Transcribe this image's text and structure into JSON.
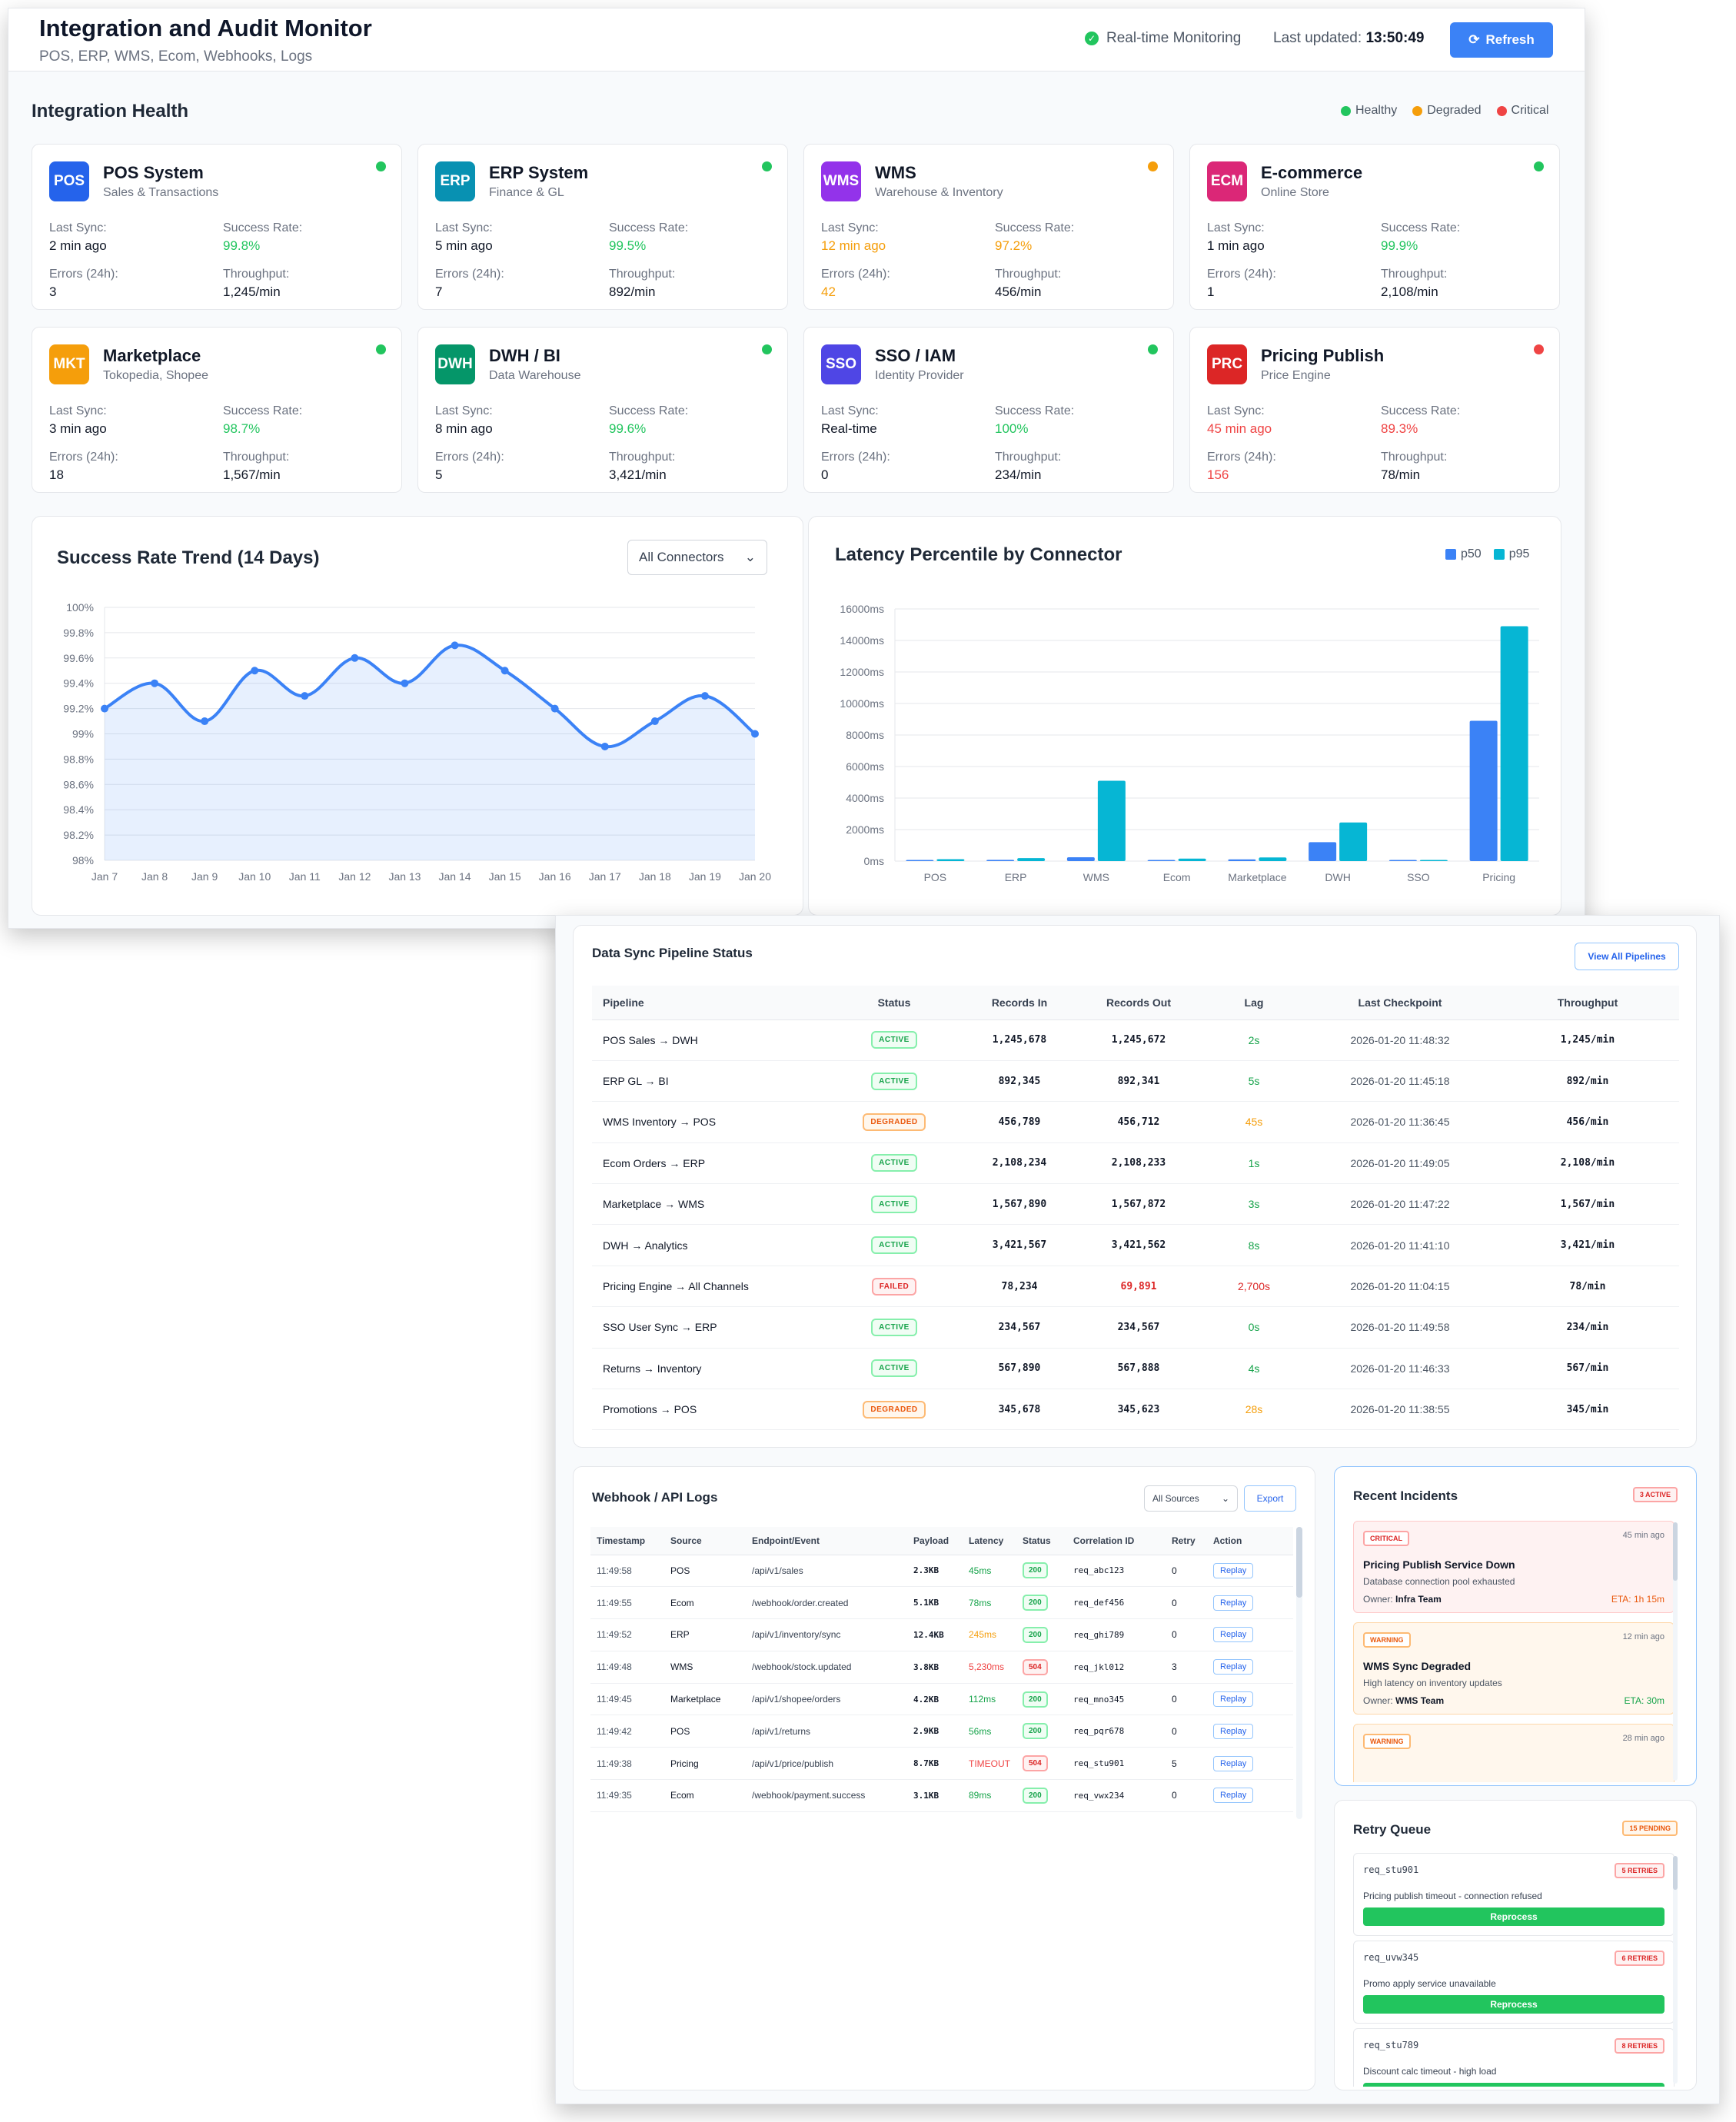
{
  "header": {
    "title": "Integration and Audit Monitor",
    "subtitle": "POS, ERP, WMS, Ecom, Webhooks, Logs",
    "realtime": "Real-time Monitoring",
    "last_updated_label": "Last updated:",
    "last_updated_time": "13:50:49",
    "refresh_label": "Refresh"
  },
  "health": {
    "title": "Integration Health",
    "legend": {
      "healthy": "Healthy",
      "degraded": "Degraded",
      "critical": "Critical"
    },
    "labels": {
      "last_sync": "Last Sync:",
      "success_rate": "Success Rate:",
      "errors": "Errors (24h):",
      "throughput": "Throughput:"
    },
    "connectors": [
      {
        "code": "POS",
        "name": "POS System",
        "desc": "Sales & Transactions",
        "last_sync": "2 min ago",
        "success_rate": "99.8%",
        "errors": "3",
        "throughput": "1,245/min",
        "status": "healthy",
        "color": "#2563eb"
      },
      {
        "code": "ERP",
        "name": "ERP System",
        "desc": "Finance & GL",
        "last_sync": "5 min ago",
        "success_rate": "99.5%",
        "errors": "7",
        "throughput": "892/min",
        "status": "healthy",
        "color": "#0891b2"
      },
      {
        "code": "WMS",
        "name": "WMS",
        "desc": "Warehouse & Inventory",
        "last_sync": "12 min ago",
        "success_rate": "97.2%",
        "errors": "42",
        "throughput": "456/min",
        "status": "degraded",
        "color": "#9333ea"
      },
      {
        "code": "ECM",
        "name": "E-commerce",
        "desc": "Online Store",
        "last_sync": "1 min ago",
        "success_rate": "99.9%",
        "errors": "1",
        "throughput": "2,108/min",
        "status": "healthy",
        "color": "#db2777"
      },
      {
        "code": "MKT",
        "name": "Marketplace",
        "desc": "Tokopedia, Shopee",
        "last_sync": "3 min ago",
        "success_rate": "98.7%",
        "errors": "18",
        "throughput": "1,567/min",
        "status": "healthy",
        "color": "#f59e0b"
      },
      {
        "code": "DWH",
        "name": "DWH / BI",
        "desc": "Data Warehouse",
        "last_sync": "8 min ago",
        "success_rate": "99.6%",
        "errors": "5",
        "throughput": "3,421/min",
        "status": "healthy",
        "color": "#059669"
      },
      {
        "code": "SSO",
        "name": "SSO / IAM",
        "desc": "Identity Provider",
        "last_sync": "Real-time",
        "success_rate": "100%",
        "errors": "0",
        "throughput": "234/min",
        "status": "healthy",
        "color": "#4f46e5"
      },
      {
        "code": "PRC",
        "name": "Pricing Publish",
        "desc": "Price Engine",
        "last_sync": "45 min ago",
        "success_rate": "89.3%",
        "errors": "156",
        "throughput": "78/min",
        "status": "critical",
        "color": "#dc2626"
      }
    ]
  },
  "success_chart": {
    "title": "Success Rate Trend (14 Days)",
    "filter": "All Connectors"
  },
  "latency_chart": {
    "title": "Latency Percentile by Connector",
    "legend": [
      "p50",
      "p95"
    ]
  },
  "chart_data": [
    {
      "type": "area",
      "title": "Success Rate Trend (14 Days)",
      "categories": [
        "Jan 7",
        "Jan 8",
        "Jan 9",
        "Jan 10",
        "Jan 11",
        "Jan 12",
        "Jan 13",
        "Jan 14",
        "Jan 15",
        "Jan 16",
        "Jan 17",
        "Jan 18",
        "Jan 19",
        "Jan 20"
      ],
      "values": [
        99.2,
        99.4,
        99.1,
        99.5,
        99.3,
        99.6,
        99.4,
        99.7,
        99.5,
        99.2,
        98.9,
        99.1,
        99.3,
        99.0
      ],
      "ylim": [
        98,
        100
      ],
      "yticks": [
        "98%",
        "98.2%",
        "98.4%",
        "98.6%",
        "98.8%",
        "99%",
        "99.2%",
        "99.4%",
        "99.6%",
        "99.8%",
        "100%"
      ],
      "color": "#3b82f6"
    },
    {
      "type": "bar",
      "title": "Latency Percentile by Connector",
      "categories": [
        "POS",
        "ERP",
        "WMS",
        "Ecom",
        "Marketplace",
        "DWH",
        "SSO",
        "Pricing"
      ],
      "series": [
        {
          "name": "p50",
          "values": [
            45,
            78,
            245,
            30,
            112,
            1200,
            15,
            8900
          ],
          "color": "#3b82f6"
        },
        {
          "name": "p95",
          "values": [
            120,
            190,
            5100,
            160,
            230,
            2450,
            40,
            14900
          ],
          "color": "#06b6d4"
        }
      ],
      "ylim": [
        0,
        16000
      ],
      "yticks": [
        "0ms",
        "2000ms",
        "4000ms",
        "6000ms",
        "8000ms",
        "10000ms",
        "12000ms",
        "14000ms",
        "16000ms"
      ]
    }
  ],
  "pipelines": {
    "title": "Data Sync Pipeline Status",
    "view_all": "View All Pipelines",
    "columns": [
      "Pipeline",
      "Status",
      "Records In",
      "Records Out",
      "Lag",
      "Last Checkpoint",
      "Throughput"
    ],
    "rows": [
      {
        "pipeline": "POS Sales → DWH",
        "status": "ACTIVE",
        "in": "1,245,678",
        "out": "1,245,672",
        "lag": "2s",
        "checkpoint": "2026-01-20 11:48:32",
        "throughput": "1,245/min"
      },
      {
        "pipeline": "ERP GL → BI",
        "status": "ACTIVE",
        "in": "892,345",
        "out": "892,341",
        "lag": "5s",
        "checkpoint": "2026-01-20 11:45:18",
        "throughput": "892/min"
      },
      {
        "pipeline": "WMS Inventory → POS",
        "status": "DEGRADED",
        "in": "456,789",
        "out": "456,712",
        "lag": "45s",
        "checkpoint": "2026-01-20 11:36:45",
        "throughput": "456/min"
      },
      {
        "pipeline": "Ecom Orders → ERP",
        "status": "ACTIVE",
        "in": "2,108,234",
        "out": "2,108,233",
        "lag": "1s",
        "checkpoint": "2026-01-20 11:49:05",
        "throughput": "2,108/min"
      },
      {
        "pipeline": "Marketplace → WMS",
        "status": "ACTIVE",
        "in": "1,567,890",
        "out": "1,567,872",
        "lag": "3s",
        "checkpoint": "2026-01-20 11:47:22",
        "throughput": "1,567/min"
      },
      {
        "pipeline": "DWH → Analytics",
        "status": "ACTIVE",
        "in": "3,421,567",
        "out": "3,421,562",
        "lag": "8s",
        "checkpoint": "2026-01-20 11:41:10",
        "throughput": "3,421/min"
      },
      {
        "pipeline": "Pricing Engine → All Channels",
        "status": "FAILED",
        "in": "78,234",
        "out": "69,891",
        "lag": "2,700s",
        "checkpoint": "2026-01-20 11:04:15",
        "throughput": "78/min"
      },
      {
        "pipeline": "SSO User Sync → ERP",
        "status": "ACTIVE",
        "in": "234,567",
        "out": "234,567",
        "lag": "0s",
        "checkpoint": "2026-01-20 11:49:58",
        "throughput": "234/min"
      },
      {
        "pipeline": "Returns → Inventory",
        "status": "ACTIVE",
        "in": "567,890",
        "out": "567,888",
        "lag": "4s",
        "checkpoint": "2026-01-20 11:46:33",
        "throughput": "567/min"
      },
      {
        "pipeline": "Promotions → POS",
        "status": "DEGRADED",
        "in": "345,678",
        "out": "345,623",
        "lag": "28s",
        "checkpoint": "2026-01-20 11:38:55",
        "throughput": "345/min"
      }
    ]
  },
  "logs": {
    "title": "Webhook / API Logs",
    "source_filter": "All Sources",
    "export": "Export",
    "columns": [
      "Timestamp",
      "Source",
      "Endpoint/Event",
      "Payload",
      "Latency",
      "Status",
      "Correlation ID",
      "Retry",
      "Action"
    ],
    "replay_label": "Replay",
    "rows": [
      {
        "ts": "11:49:58",
        "source": "POS",
        "endpoint": "/api/v1/sales",
        "payload": "2.3KB",
        "latency": "45ms",
        "status": "200",
        "corr": "req_abc123",
        "retry": "0",
        "lat_level": "ok"
      },
      {
        "ts": "11:49:55",
        "source": "Ecom",
        "endpoint": "/webhook/order.created",
        "payload": "5.1KB",
        "latency": "78ms",
        "status": "200",
        "corr": "req_def456",
        "retry": "0",
        "lat_level": "ok"
      },
      {
        "ts": "11:49:52",
        "source": "ERP",
        "endpoint": "/api/v1/inventory/sync",
        "payload": "12.4KB",
        "latency": "245ms",
        "status": "200",
        "corr": "req_ghi789",
        "retry": "0",
        "lat_level": "warn"
      },
      {
        "ts": "11:49:48",
        "source": "WMS",
        "endpoint": "/webhook/stock.updated",
        "payload": "3.8KB",
        "latency": "5,230ms",
        "status": "504",
        "corr": "req_jkl012",
        "retry": "3",
        "lat_level": "bad"
      },
      {
        "ts": "11:49:45",
        "source": "Marketplace",
        "endpoint": "/api/v1/shopee/orders",
        "payload": "4.2KB",
        "latency": "112ms",
        "status": "200",
        "corr": "req_mno345",
        "retry": "0",
        "lat_level": "ok"
      },
      {
        "ts": "11:49:42",
        "source": "POS",
        "endpoint": "/api/v1/returns",
        "payload": "2.9KB",
        "latency": "56ms",
        "status": "200",
        "corr": "req_pqr678",
        "retry": "0",
        "lat_level": "ok"
      },
      {
        "ts": "11:49:38",
        "source": "Pricing",
        "endpoint": "/api/v1/price/publish",
        "payload": "8.7KB",
        "latency": "TIMEOUT",
        "status": "504",
        "corr": "req_stu901",
        "retry": "5",
        "lat_level": "bad"
      },
      {
        "ts": "11:49:35",
        "source": "Ecom",
        "endpoint": "/webhook/payment.success",
        "payload": "3.1KB",
        "latency": "89ms",
        "status": "200",
        "corr": "req_vwx234",
        "retry": "0",
        "lat_level": "ok"
      }
    ]
  },
  "incidents": {
    "title": "Recent Incidents",
    "badge": "3 ACTIVE",
    "items": [
      {
        "tag": "CRITICAL",
        "ago": "45 min ago",
        "title": "Pricing Publish Service Down",
        "desc": "Database connection pool exhausted",
        "owner_label": "Owner:",
        "owner": "Infra Team",
        "eta": "ETA: 1h 15m",
        "level": "critical"
      },
      {
        "tag": "WARNING",
        "ago": "12 min ago",
        "title": "WMS Sync Degraded",
        "desc": "High latency on inventory updates",
        "owner_label": "Owner:",
        "owner": "WMS Team",
        "eta": "ETA: 30m",
        "level": "warning"
      },
      {
        "tag": "WARNING",
        "ago": "28 min ago",
        "title": "",
        "desc": "",
        "owner_label": "",
        "owner": "",
        "eta": "",
        "level": "warning"
      }
    ]
  },
  "retry_queue": {
    "title": "Retry Queue",
    "badge": "15 PENDING",
    "button": "Reprocess",
    "items": [
      {
        "id": "req_stu901",
        "count": "5 RETRIES",
        "msg": "Pricing publish timeout - connection refused"
      },
      {
        "id": "req_uvw345",
        "count": "6 RETRIES",
        "msg": "Promo apply service unavailable"
      },
      {
        "id": "req_stu789",
        "count": "8 RETRIES",
        "msg": "Discount calc timeout - high load"
      }
    ]
  }
}
